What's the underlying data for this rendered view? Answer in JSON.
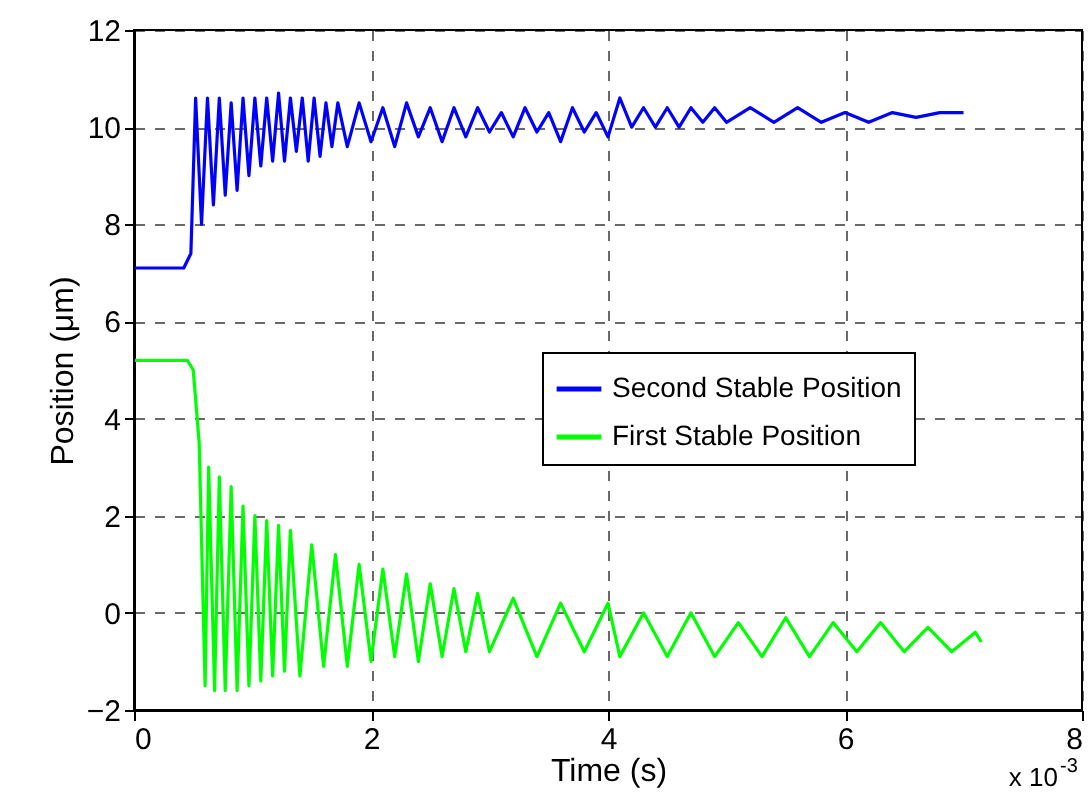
{
  "chart_data": {
    "type": "line",
    "xlabel": "Time (s)",
    "ylabel": "Position (μm)",
    "annotations": [
      "x 10$^{-3}$"
    ],
    "xlim": [
      0,
      8
    ],
    "xticks": [
      0,
      2,
      4,
      6,
      8
    ],
    "ylim": [
      -2,
      12
    ],
    "yticks": [
      -2,
      0,
      2,
      4,
      6,
      8,
      10,
      12
    ],
    "grid": true,
    "legend": "right",
    "line_style": "solid",
    "marker": "none",
    "series": [
      {
        "name": "Second Stable Position",
        "color": "#0000ff",
        "x": [
          0,
          0.42,
          0.48,
          0.52,
          0.57,
          0.62,
          0.67,
          0.72,
          0.77,
          0.82,
          0.87,
          0.92,
          0.97,
          1.02,
          1.07,
          1.12,
          1.17,
          1.22,
          1.27,
          1.32,
          1.37,
          1.42,
          1.47,
          1.52,
          1.57,
          1.62,
          1.67,
          1.72,
          1.8,
          1.9,
          2.0,
          2.1,
          2.2,
          2.3,
          2.4,
          2.5,
          2.6,
          2.7,
          2.8,
          2.9,
          3.0,
          3.1,
          3.2,
          3.3,
          3.4,
          3.5,
          3.6,
          3.7,
          3.8,
          3.9,
          4.0,
          4.1,
          4.2,
          4.3,
          4.4,
          4.5,
          4.6,
          4.7,
          4.8,
          4.9,
          5.0,
          5.2,
          5.4,
          5.6,
          5.8,
          6.0,
          6.2,
          6.4,
          6.6,
          6.8,
          7.0
        ],
        "values": [
          7.1,
          7.1,
          7.4,
          10.6,
          8.0,
          10.6,
          8.4,
          10.6,
          8.6,
          10.5,
          8.7,
          10.6,
          9.0,
          10.6,
          9.2,
          10.6,
          9.3,
          10.7,
          9.3,
          10.6,
          9.5,
          10.6,
          9.3,
          10.6,
          9.4,
          10.5,
          9.6,
          10.5,
          9.6,
          10.5,
          9.7,
          10.4,
          9.6,
          10.5,
          9.8,
          10.4,
          9.7,
          10.4,
          9.8,
          10.4,
          9.9,
          10.3,
          9.8,
          10.4,
          9.9,
          10.3,
          9.7,
          10.4,
          9.9,
          10.3,
          9.8,
          10.6,
          10.0,
          10.4,
          10.0,
          10.4,
          10.0,
          10.4,
          10.1,
          10.4,
          10.1,
          10.4,
          10.1,
          10.4,
          10.1,
          10.3,
          10.1,
          10.3,
          10.2,
          10.3,
          10.3
        ]
      },
      {
        "name": "First Stable Position",
        "color": "#00ff00",
        "x": [
          0,
          0.45,
          0.5,
          0.55,
          0.6,
          0.63,
          0.68,
          0.72,
          0.77,
          0.82,
          0.87,
          0.92,
          0.97,
          1.02,
          1.07,
          1.12,
          1.17,
          1.22,
          1.27,
          1.32,
          1.4,
          1.5,
          1.6,
          1.7,
          1.8,
          1.9,
          2.0,
          2.1,
          2.2,
          2.3,
          2.4,
          2.5,
          2.6,
          2.7,
          2.8,
          2.9,
          3.0,
          3.2,
          3.4,
          3.6,
          3.8,
          4.0,
          4.1,
          4.3,
          4.5,
          4.7,
          4.9,
          5.1,
          5.3,
          5.5,
          5.7,
          5.9,
          6.1,
          6.3,
          6.5,
          6.7,
          6.9,
          7.1,
          7.15
        ],
        "values": [
          5.2,
          5.2,
          5.0,
          3.5,
          -1.5,
          3.0,
          -1.6,
          2.8,
          -1.6,
          2.6,
          -1.6,
          2.2,
          -1.5,
          2.0,
          -1.4,
          1.9,
          -1.3,
          1.8,
          -1.2,
          1.7,
          -1.3,
          1.4,
          -1.1,
          1.2,
          -1.1,
          1.0,
          -1.0,
          0.9,
          -0.9,
          0.8,
          -1.0,
          0.6,
          -0.9,
          0.5,
          -0.8,
          0.4,
          -0.8,
          0.3,
          -0.9,
          0.2,
          -0.8,
          0.2,
          -0.9,
          0.0,
          -0.9,
          0.0,
          -0.9,
          -0.2,
          -0.9,
          -0.1,
          -0.9,
          -0.2,
          -0.8,
          -0.2,
          -0.8,
          -0.3,
          -0.8,
          -0.4,
          -0.6
        ]
      }
    ]
  }
}
